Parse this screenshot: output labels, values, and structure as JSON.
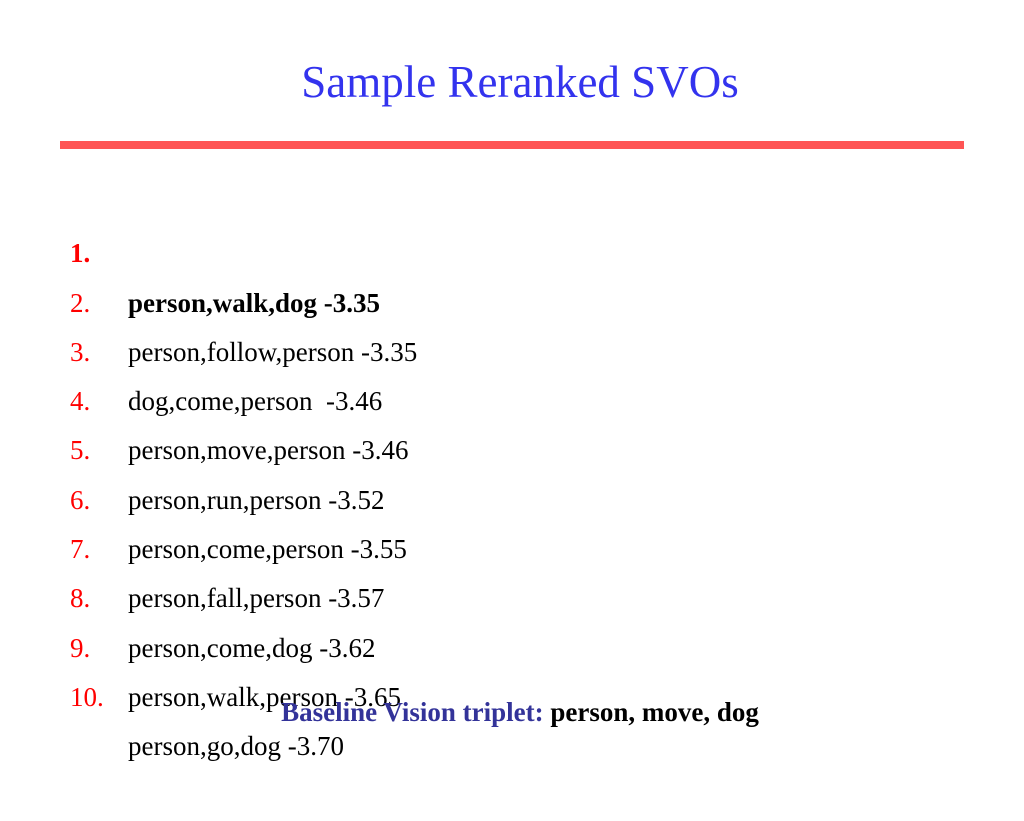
{
  "title": "Sample Reranked SVOs",
  "colors": {
    "title": "#3333ee",
    "rule": "#ff5555",
    "numbers": "#ff0000",
    "baseline_label": "#333399"
  },
  "svos": [
    {
      "num": "1.",
      "text": "person,walk,dog -3.35"
    },
    {
      "num": "2.",
      "text": "person,follow,person -3.35"
    },
    {
      "num": "3.",
      "text": "dog,come,person  -3.46"
    },
    {
      "num": "4.",
      "text": "person,move,person -3.46"
    },
    {
      "num": "5.",
      "text": "person,run,person -3.52"
    },
    {
      "num": "6.",
      "text": "person,come,person -3.55"
    },
    {
      "num": "7.",
      "text": "person,fall,person -3.57"
    },
    {
      "num": "8.",
      "text": "person,come,dog -3.62"
    },
    {
      "num": "9.",
      "text": "person,walk,person -3.65"
    },
    {
      "num": "10.",
      "text": "person,go,dog -3.70"
    }
  ],
  "baseline": {
    "label": "Baseline Vision triplet:",
    "value": "person, move, dog"
  }
}
